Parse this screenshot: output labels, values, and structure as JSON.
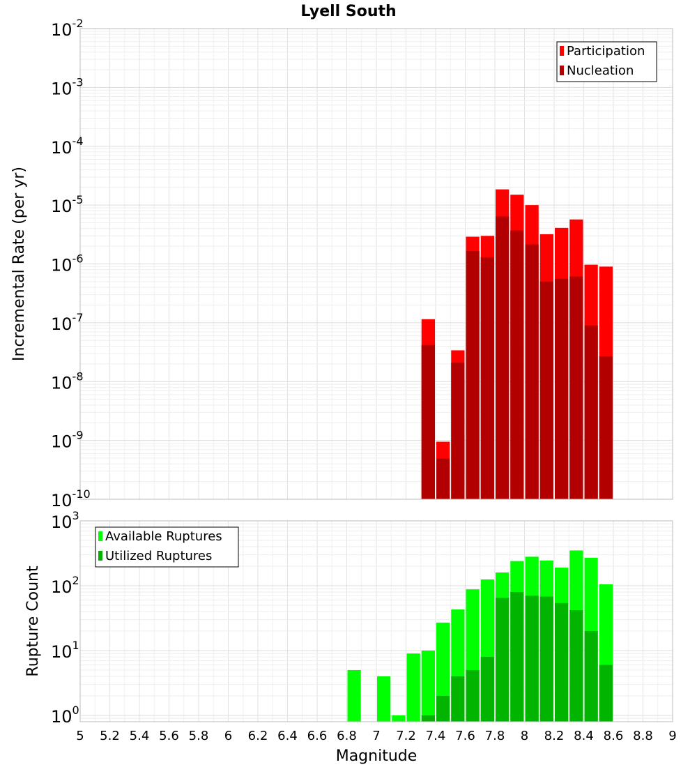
{
  "chart_data": [
    {
      "type": "bar",
      "title": "Lyell South",
      "xlabel": "",
      "ylabel": "Incremental Rate (per yr)",
      "yscale": "log",
      "ylim": [
        1e-10,
        0.01
      ],
      "xlim": [
        5,
        9
      ],
      "ytick_exponents": [
        "-2",
        "-3",
        "-4",
        "-5",
        "-6",
        "-7",
        "-8",
        "-9",
        "-10"
      ],
      "ytick_base": "10",
      "bin_width": 0.1,
      "legend_position": "top-right",
      "colors": {
        "Participation": "#ff0000",
        "Nucleation": "#b20000"
      },
      "series": [
        {
          "name": "Participation",
          "x": [
            7.35,
            7.45,
            7.55,
            7.65,
            7.75,
            7.85,
            7.95,
            8.05,
            8.15,
            8.25,
            8.35,
            8.45,
            8.55
          ],
          "values": [
            1.15e-07,
            9.5e-10,
            3.4e-08,
            2.9e-06,
            3e-06,
            1.85e-05,
            1.5e-05,
            1e-05,
            3.2e-06,
            4.1e-06,
            5.7e-06,
            9.7e-07,
            9e-07
          ]
        },
        {
          "name": "Nucleation",
          "x": [
            7.35,
            7.45,
            7.55,
            7.65,
            7.75,
            7.85,
            7.95,
            8.05,
            8.15,
            8.25,
            8.35,
            8.45,
            8.55
          ],
          "values": [
            4.2e-08,
            4.9e-10,
            2.1e-08,
            1.65e-06,
            1.3e-06,
            6.4e-06,
            3.7e-06,
            2.15e-06,
            5e-07,
            5.6e-07,
            6.1e-07,
            9e-08,
            2.7e-08
          ]
        }
      ]
    },
    {
      "type": "bar",
      "title": "",
      "xlabel": "Magnitude",
      "ylabel": "Rupture Count",
      "yscale": "log",
      "ylim": [
        0.8,
        1000
      ],
      "xlim": [
        5,
        9
      ],
      "ytick_exponents": [
        "3",
        "2",
        "1",
        "0"
      ],
      "ytick_base": "10",
      "bin_width": 0.1,
      "legend_position": "top-left",
      "colors": {
        "Available Ruptures": "#00ff00",
        "Utilized Ruptures": "#00b400"
      },
      "xtick_labels": [
        "5",
        "5.2",
        "5.4",
        "5.6",
        "5.8",
        "6",
        "6.2",
        "6.4",
        "6.6",
        "6.8",
        "7",
        "7.2",
        "7.4",
        "7.6",
        "7.8",
        "8",
        "8.2",
        "8.4",
        "8.6",
        "8.8",
        "9"
      ],
      "series": [
        {
          "name": "Available Ruptures",
          "x": [
            6.85,
            7.05,
            7.15,
            7.25,
            7.35,
            7.45,
            7.55,
            7.65,
            7.75,
            7.85,
            7.95,
            8.05,
            8.15,
            8.25,
            8.35,
            8.45,
            8.55
          ],
          "values": [
            5,
            4,
            1,
            9,
            10,
            27,
            43,
            88,
            125,
            160,
            240,
            280,
            245,
            190,
            350,
            270,
            105
          ]
        },
        {
          "name": "Utilized Ruptures",
          "x": [
            7.35,
            7.45,
            7.55,
            7.65,
            7.75,
            7.85,
            7.95,
            8.05,
            8.15,
            8.25,
            8.35,
            8.45,
            8.55
          ],
          "values": [
            1,
            2,
            4,
            5,
            8,
            65,
            80,
            70,
            68,
            54,
            42,
            20,
            6
          ]
        }
      ]
    }
  ]
}
